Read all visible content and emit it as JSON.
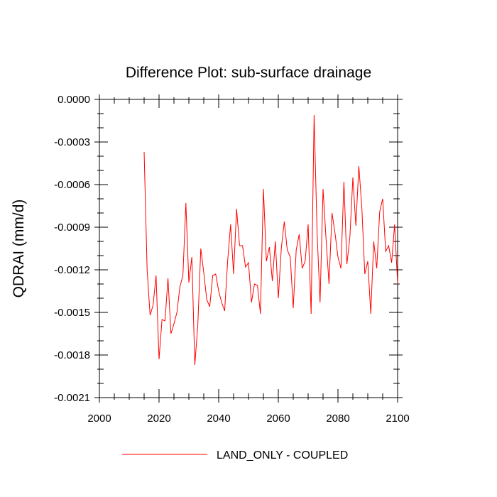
{
  "chart_data": {
    "type": "line",
    "title": "Difference Plot: sub-surface drainage",
    "ylabel": "QDRAI  (mm/d)",
    "xlabel": "",
    "xlim": [
      2000,
      2100
    ],
    "ylim": [
      -0.0021,
      0.0
    ],
    "x_ticks": [
      2000,
      2020,
      2040,
      2060,
      2080,
      2100
    ],
    "x_tick_labels": [
      "2000",
      "2020",
      "2040",
      "2060",
      "2080",
      "2100"
    ],
    "y_ticks": [
      0.0,
      -0.0003,
      -0.0006,
      -0.0009,
      -0.0012,
      -0.0015,
      -0.0018,
      -0.0021
    ],
    "y_tick_labels": [
      "0.0000",
      "-0.0003",
      "-0.0006",
      "-0.0009",
      "-0.0012",
      "-0.0015",
      "-0.0018",
      "-0.0021"
    ],
    "grid": false,
    "legend_position": "bottom",
    "series": [
      {
        "name": "LAND_ONLY - COUPLED",
        "color": "#ff0000",
        "x": [
          2015,
          2016,
          2017,
          2018,
          2019,
          2020,
          2021,
          2022,
          2023,
          2024,
          2025,
          2026,
          2027,
          2028,
          2029,
          2030,
          2031,
          2032,
          2033,
          2034,
          2035,
          2036,
          2037,
          2038,
          2039,
          2040,
          2041,
          2042,
          2043,
          2044,
          2045,
          2046,
          2047,
          2048,
          2049,
          2050,
          2051,
          2052,
          2053,
          2054,
          2055,
          2056,
          2057,
          2058,
          2059,
          2060,
          2061,
          2062,
          2063,
          2064,
          2065,
          2066,
          2067,
          2068,
          2069,
          2070,
          2071,
          2072,
          2073,
          2074,
          2075,
          2076,
          2077,
          2078,
          2079,
          2080,
          2081,
          2082,
          2083,
          2084,
          2085,
          2086,
          2087,
          2088,
          2089,
          2090,
          2091,
          2092,
          2093,
          2094,
          2095,
          2096,
          2097,
          2098,
          2099,
          2100
        ],
        "values": [
          -0.00037,
          -0.0012,
          -0.00152,
          -0.00145,
          -0.00124,
          -0.00183,
          -0.00155,
          -0.00156,
          -0.00126,
          -0.00165,
          -0.00158,
          -0.0015,
          -0.00132,
          -0.00124,
          -0.00073,
          -0.00129,
          -0.00111,
          -0.00187,
          -0.00159,
          -0.00105,
          -0.00122,
          -0.00141,
          -0.00146,
          -0.00124,
          -0.00123,
          -0.00135,
          -0.00143,
          -0.00149,
          -0.00114,
          -0.00088,
          -0.00123,
          -0.00077,
          -0.00103,
          -0.00103,
          -0.00118,
          -0.00115,
          -0.00143,
          -0.0013,
          -0.00131,
          -0.00151,
          -0.00063,
          -0.00114,
          -0.00104,
          -0.00128,
          -0.001,
          -0.0014,
          -0.00105,
          -0.00086,
          -0.00106,
          -0.00111,
          -0.00147,
          -0.00106,
          -0.00095,
          -0.00119,
          -0.00114,
          -0.00088,
          -0.00151,
          -0.00011,
          -0.00094,
          -0.00143,
          -0.00063,
          -0.00098,
          -0.0013,
          -0.0008,
          -0.00094,
          -0.00111,
          -0.00119,
          -0.00058,
          -0.00116,
          -0.00097,
          -0.00055,
          -0.00089,
          -0.00047,
          -0.00076,
          -0.00123,
          -0.00114,
          -0.00151,
          -0.001,
          -0.00119,
          -0.00079,
          -0.0007,
          -0.00107,
          -0.00103,
          -0.00115,
          -0.00088,
          -0.0013
        ]
      }
    ]
  }
}
